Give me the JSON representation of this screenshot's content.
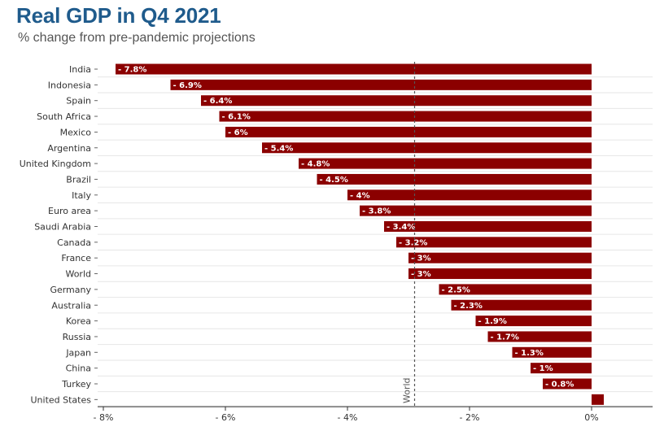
{
  "chart_data": {
    "type": "bar",
    "orientation": "horizontal",
    "title": "Real GDP in Q4 2021",
    "subtitle": "% change from pre-pandemic projections",
    "categories": [
      "India",
      "Indonesia",
      "Spain",
      "South Africa",
      "Mexico",
      "Argentina",
      "United Kingdom",
      "Brazil",
      "Italy",
      "Euro area",
      "Saudi Arabia",
      "Canada",
      "France",
      "World",
      "Germany",
      "Australia",
      "Korea",
      "Russia",
      "Japan",
      "China",
      "Turkey",
      "United States"
    ],
    "values": [
      -7.8,
      -6.9,
      -6.4,
      -6.1,
      -6,
      -5.4,
      -4.8,
      -4.5,
      -4,
      -3.8,
      -3.4,
      -3.2,
      -3,
      -3,
      -2.5,
      -2.3,
      -1.9,
      -1.7,
      -1.3,
      -1,
      -0.8,
      0.2
    ],
    "data_labels": [
      "- 7.8%",
      "- 6.9%",
      "- 6.4%",
      "- 6.1%",
      "- 6%",
      "- 5.4%",
      "- 4.8%",
      "- 4.5%",
      "- 4%",
      "- 3.8%",
      "- 3.4%",
      "- 3.2%",
      "- 3%",
      "- 3%",
      "- 2.5%",
      "- 2.3%",
      "- 1.9%",
      "- 1.7%",
      "- 1.3%",
      "- 1%",
      "- 0.8%",
      ""
    ],
    "xlim": [
      -8,
      0.8
    ],
    "x_ticks": [
      -8,
      -6,
      -4,
      -2,
      0
    ],
    "x_tick_labels": [
      "- 8%",
      "- 6%",
      "- 4%",
      "- 2%",
      "0%"
    ],
    "reference_line": {
      "value": -2.9,
      "label": "World"
    },
    "bar_color": "#8b0000",
    "grid": "horizontal"
  }
}
